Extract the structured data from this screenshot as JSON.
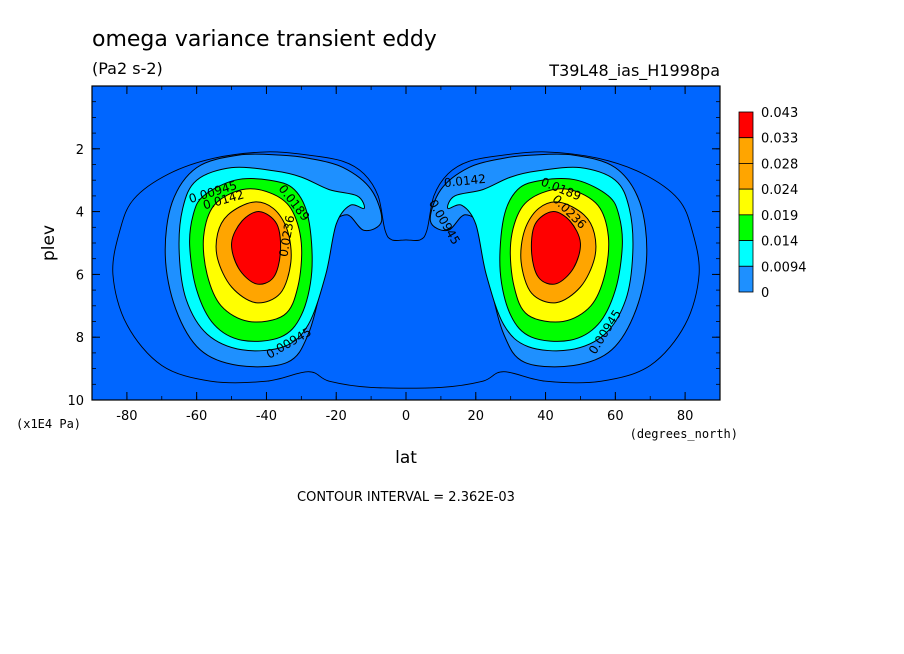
{
  "chart_data": {
    "type": "contour",
    "title": "omega variance transient eddy",
    "units": "(Pa2 s-2)",
    "dataset": "T39L48_ias_H1998pa",
    "xlabel": "lat",
    "xunits": "(degrees_north)",
    "ylabel": "plev",
    "yunits": "(x1E4 Pa)",
    "xlim": [
      -90,
      90
    ],
    "ylim": [
      10,
      0
    ],
    "xticks": [
      -80,
      -60,
      -40,
      -20,
      0,
      20,
      40,
      60,
      80
    ],
    "yticks": [
      2,
      4,
      6,
      8,
      10
    ],
    "contour_interval_text": "CONTOUR INTERVAL = 2.362E-03",
    "levels": [
      0,
      0.0094,
      0.014,
      0.019,
      0.024,
      0.028,
      0.033,
      0.043
    ],
    "colorbar": {
      "labels": [
        "0.043",
        "0.033",
        "0.028",
        "0.024",
        "0.019",
        "0.014",
        "0.0094",
        "0"
      ],
      "colors": [
        "#ff0000",
        "#ffa500",
        "#ffa500",
        "#ffff00",
        "#00ff00",
        "#00ffff",
        "#1e90ff",
        "#0066ff"
      ]
    },
    "fill_colors": [
      "#0066ff",
      "#1e90ff",
      "#00ffff",
      "#00ff00",
      "#ffff00",
      "#ffa500",
      "#ff0000"
    ],
    "field": {
      "maxima": [
        {
          "lat": -40,
          "plev": 4.9,
          "value": 0.031
        },
        {
          "lat": 40,
          "plev": 4.9,
          "value": 0.031
        }
      ]
    },
    "contour_labels": [
      {
        "text": "0.00945",
        "lat": -55,
        "plev": 3.5,
        "angle": -17
      },
      {
        "text": "0.0142",
        "lat": -52,
        "plev": 3.75,
        "angle": -16
      },
      {
        "text": "0.0189",
        "lat": -33,
        "plev": 3.8,
        "angle": 52
      },
      {
        "text": "0.0236",
        "lat": -33,
        "plev": 4.8,
        "angle": -80
      },
      {
        "text": "0.00945",
        "lat": -33,
        "plev": 8.3,
        "angle": -30
      },
      {
        "text": "0.0142",
        "lat": 17,
        "plev": 3.15,
        "angle": -6
      },
      {
        "text": "0.00945",
        "lat": 10,
        "plev": 4.4,
        "angle": 60
      },
      {
        "text": "0.0189",
        "lat": 44,
        "plev": 3.4,
        "angle": 22
      },
      {
        "text": "0.0236",
        "lat": 46,
        "plev": 4.1,
        "angle": 45
      },
      {
        "text": "0.00945",
        "lat": 58,
        "plev": 7.9,
        "angle": -58
      }
    ]
  }
}
